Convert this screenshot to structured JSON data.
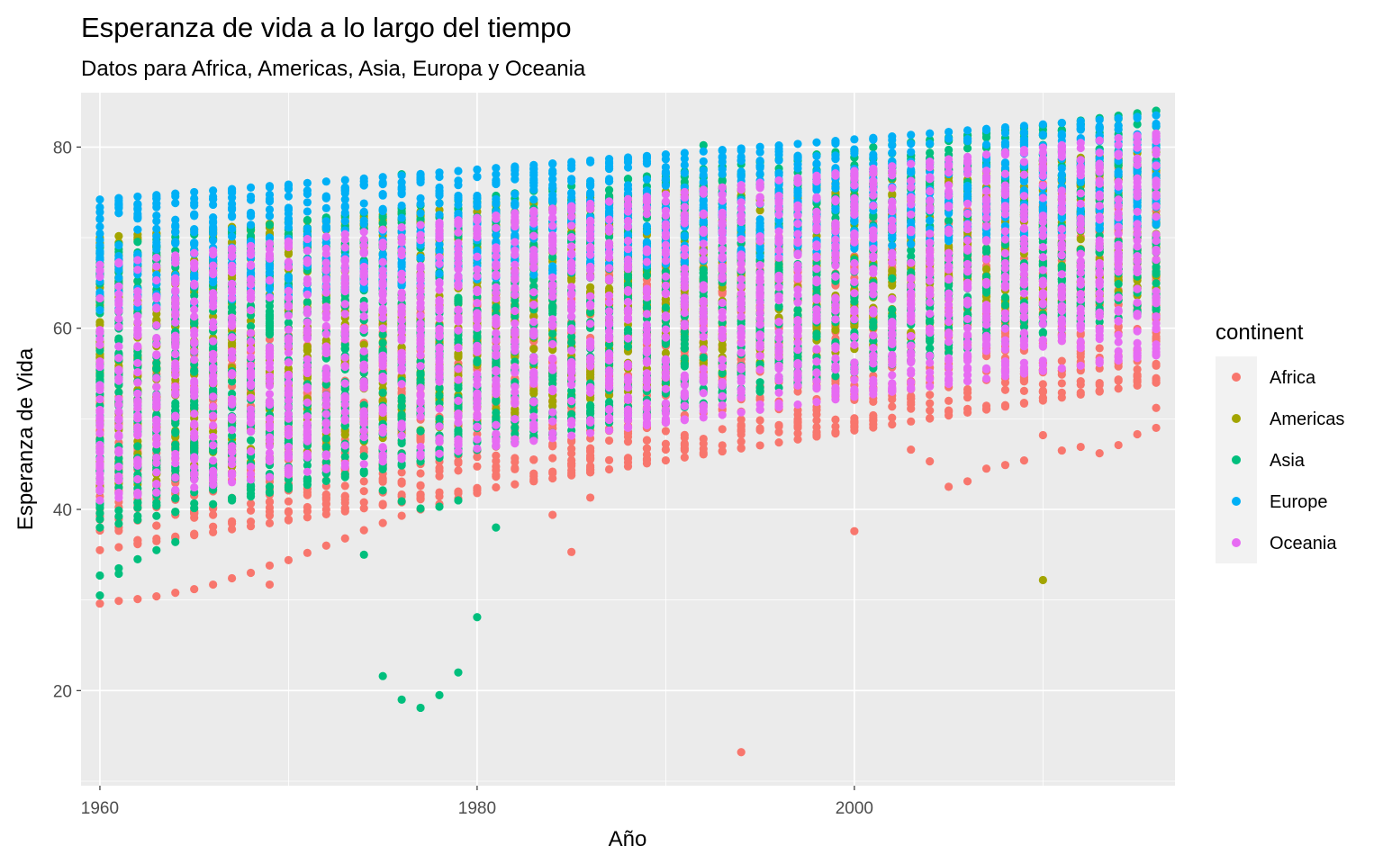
{
  "chart_data": {
    "type": "scatter",
    "title": "Esperanza de vida a lo largo del tiempo",
    "subtitle": "Datos para Africa, Americas, Asia, Europa y Oceania",
    "xlabel": "Año",
    "ylabel": "Esperanza de Vida",
    "xlim": [
      1959,
      2017
    ],
    "ylim": [
      9.5,
      86
    ],
    "x_ticks": [
      1960,
      1980,
      2000
    ],
    "y_ticks": [
      20,
      40,
      60,
      80
    ],
    "x_tick_labels": [
      "1960",
      "1980",
      "2000"
    ],
    "y_tick_labels": [
      "20",
      "40",
      "60",
      "80"
    ],
    "grid": true,
    "legend": {
      "title": "continent",
      "position": "right"
    },
    "series": [
      {
        "name": "Africa",
        "color": "#F8766D",
        "bands": [
          {
            "year_start": 1960,
            "year_end": 2016,
            "low_start": 35.5,
            "low_end": 54,
            "high_start": 55,
            "high_end": 78.5
          }
        ],
        "points": [
          [
            1960,
            29.6
          ],
          [
            1961,
            29.9
          ],
          [
            1962,
            30.1
          ],
          [
            1963,
            30.4
          ],
          [
            1964,
            30.8
          ],
          [
            1965,
            31.2
          ],
          [
            1966,
            31.7
          ],
          [
            1967,
            32.4
          ],
          [
            1968,
            33.0
          ],
          [
            1969,
            31.7
          ],
          [
            1969,
            33.8
          ],
          [
            1970,
            34.4
          ],
          [
            1971,
            35.2
          ],
          [
            1972,
            36.0
          ],
          [
            1973,
            36.8
          ],
          [
            1974,
            37.7
          ],
          [
            1975,
            38.5
          ],
          [
            1976,
            39.3
          ],
          [
            1977,
            40.0
          ],
          [
            1978,
            40.6
          ],
          [
            1979,
            41.2
          ],
          [
            1980,
            41.8
          ],
          [
            1984,
            39.4
          ],
          [
            1985,
            35.3
          ],
          [
            1986,
            41.3
          ],
          [
            1994,
            13.2
          ],
          [
            2000,
            37.6
          ],
          [
            2003,
            46.6
          ],
          [
            2004,
            45.3
          ],
          [
            2005,
            42.5
          ],
          [
            2006,
            43.1
          ],
          [
            2007,
            44.5
          ],
          [
            2008,
            44.9
          ],
          [
            2009,
            45.4
          ],
          [
            2010,
            48.2
          ],
          [
            2011,
            46.5
          ],
          [
            2012,
            46.9
          ],
          [
            2013,
            46.2
          ],
          [
            2014,
            47.1
          ],
          [
            2015,
            48.3
          ],
          [
            2016,
            49.0
          ],
          [
            2016,
            51.2
          ],
          [
            2016,
            54.0
          ]
        ]
      },
      {
        "name": "Americas",
        "color": "#A3A500",
        "bands": [
          {
            "year_start": 1960,
            "year_end": 2016,
            "low_start": 42,
            "low_end": 64,
            "high_start": 70,
            "high_end": 79.5
          }
        ],
        "points": [
          [
            1971,
            52.0
          ],
          [
            1975,
            55.0
          ],
          [
            1980,
            57.0
          ],
          [
            1990,
            62.0
          ],
          [
            2010,
            32.2
          ]
        ]
      },
      {
        "name": "Asia",
        "color": "#00BF7D",
        "bands": [
          {
            "year_start": 1960,
            "year_end": 2016,
            "low_start": 38,
            "low_end": 62,
            "high_start": 69,
            "high_end": 84
          }
        ],
        "points": [
          [
            1960,
            30.5
          ],
          [
            1960,
            32.7
          ],
          [
            1961,
            33.5
          ],
          [
            1961,
            32.9
          ],
          [
            1962,
            34.5
          ],
          [
            1963,
            35.5
          ],
          [
            1964,
            36.4
          ],
          [
            1974,
            35.0
          ],
          [
            1975,
            42.1
          ],
          [
            1975,
            21.6
          ],
          [
            1976,
            19.0
          ],
          [
            1976,
            40.9
          ],
          [
            1977,
            18.1
          ],
          [
            1977,
            40.1
          ],
          [
            1978,
            19.5
          ],
          [
            1978,
            40.3
          ],
          [
            1979,
            22.0
          ],
          [
            1979,
            41.0
          ],
          [
            1980,
            28.1
          ],
          [
            1981,
            38.0
          ],
          [
            1976,
            77.0
          ],
          [
            1992,
            80.2
          ],
          [
            2016,
            84.0
          ]
        ]
      },
      {
        "name": "Europe",
        "color": "#00B0F6",
        "bands": [
          {
            "year_start": 1960,
            "year_end": 2016,
            "low_start": 62,
            "low_end": 71.5,
            "high_start": 74.2,
            "high_end": 83.5
          }
        ],
        "points": []
      },
      {
        "name": "Oceania",
        "color": "#E76BF3",
        "bands": [
          {
            "year_start": 1960,
            "year_end": 2016,
            "low_start": 41,
            "low_end": 57,
            "high_start": 67,
            "high_end": 81.5
          }
        ],
        "points": []
      }
    ]
  }
}
